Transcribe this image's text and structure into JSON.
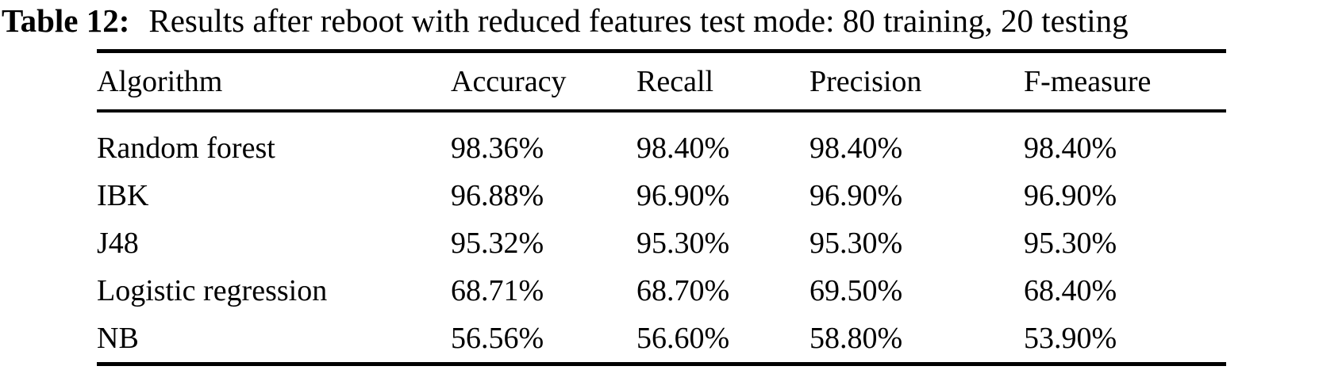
{
  "caption": {
    "label": "Table 12:",
    "text": "Results after reboot with reduced features test mode: 80 training, 20 testing"
  },
  "table": {
    "columns": [
      "Algorithm",
      "Accuracy",
      "Recall",
      "Precision",
      "F-measure"
    ],
    "rows": [
      [
        "Random forest",
        "98.36%",
        "98.40%",
        "98.40%",
        "98.40%"
      ],
      [
        "IBK",
        "96.88%",
        "96.90%",
        "96.90%",
        "96.90%"
      ],
      [
        "J48",
        "95.32%",
        "95.30%",
        "95.30%",
        "95.30%"
      ],
      [
        "Logistic regression",
        "68.71%",
        "68.70%",
        "69.50%",
        "68.40%"
      ],
      [
        "NB",
        "56.56%",
        "56.60%",
        "58.80%",
        "53.90%"
      ]
    ]
  },
  "colors": {
    "text": "#000000",
    "background": "#ffffff",
    "rule": "#000000"
  }
}
